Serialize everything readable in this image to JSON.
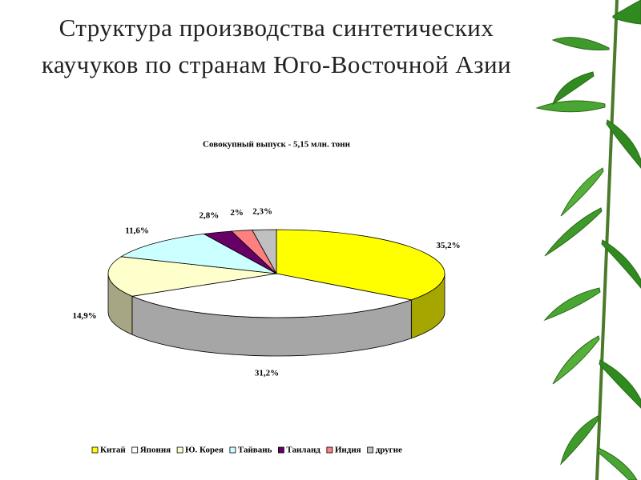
{
  "slide_title": "Структура производства синтетических каучуков по странам Юго-Восточной Азии",
  "chart_data": {
    "type": "pie",
    "title": "Совокупный выпуск - 5,15 млн. тонн",
    "categories": [
      "Китай",
      "Япония",
      "Ю. Корея",
      "Тайвань",
      "Таиланд",
      "Индия",
      "другие"
    ],
    "values": [
      35.2,
      31.2,
      14.9,
      11.6,
      2.8,
      2,
      2.3
    ],
    "value_labels": [
      "35,2%",
      "31,2%",
      "14,9%",
      "11,6%",
      "2,8%",
      "2%",
      "2,3%"
    ],
    "colors": [
      "#ffff00",
      "#ffffff",
      "#ffffcc",
      "#ccffff",
      "#660066",
      "#ff8080",
      "#c0c0c0"
    ],
    "legend": "bottom"
  }
}
